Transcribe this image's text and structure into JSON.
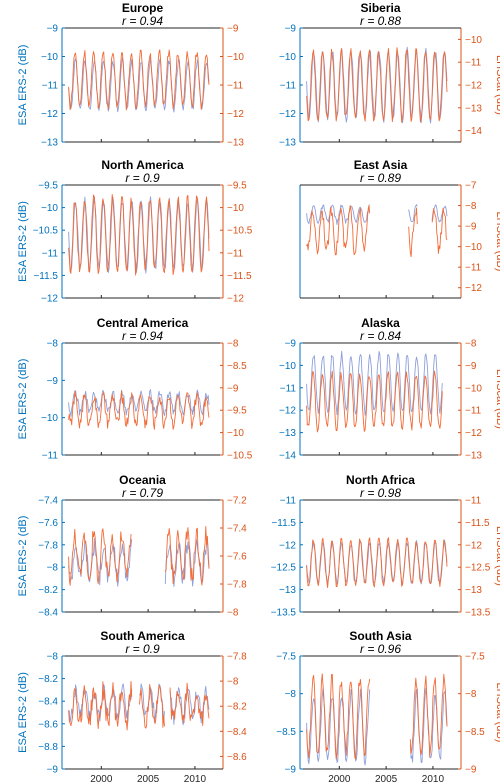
{
  "colors": {
    "ers": "#0072BD",
    "ers_line": "#8DA0DB",
    "lhs": "#D95319",
    "lhs_line": "#F26B38",
    "axis": "#262626"
  },
  "labels": {
    "left_axis": "ESA ERS-2 (dB)",
    "right_axis": "LHScat (dB)",
    "r_prefix": "r = "
  },
  "chart_data": [
    {
      "type": "line",
      "title": "Europe",
      "subtitle": "r = 0.94",
      "left_ylim": [
        -13,
        -9
      ],
      "left_ticks": [
        -13,
        -12,
        -11,
        -10,
        -9
      ],
      "right_ylim": [
        -13,
        -9
      ],
      "right_ticks": [
        -13,
        -12,
        -11,
        -10,
        -9
      ],
      "x_start": 1996.5,
      "x_end": 2011.5,
      "xlim": [
        1995.8,
        2013
      ],
      "xticks": [
        2000,
        2005,
        2010
      ],
      "series": [
        {
          "axis": "left",
          "amplitude": 0.85,
          "center": -11.0,
          "phase": 0.0,
          "noise": 0.12,
          "gaps": []
        },
        {
          "axis": "right",
          "amplitude": 0.95,
          "center": -10.8,
          "phase": 0.05,
          "noise": 0.15,
          "gaps": []
        }
      ]
    },
    {
      "type": "line",
      "title": "Siberia",
      "subtitle": "r = 0.88",
      "left_ylim": [
        -13,
        -9
      ],
      "left_ticks": [
        -13,
        -12,
        -11,
        -10,
        -9
      ],
      "right_ylim": [
        -14.5,
        -9.5
      ],
      "right_ticks": [
        -14,
        -13,
        -12,
        -11,
        -10
      ],
      "x_start": 1996.5,
      "x_end": 2011.5,
      "xlim": [
        1995.8,
        2013
      ],
      "xticks": [
        2000,
        2005,
        2010
      ],
      "series": [
        {
          "axis": "left",
          "amplitude": 1.2,
          "center": -11.0,
          "phase": 0.0,
          "noise": 0.15,
          "gaps": []
        },
        {
          "axis": "right",
          "amplitude": 1.5,
          "center": -12.0,
          "phase": 0.05,
          "noise": 0.18,
          "gaps": []
        }
      ]
    },
    {
      "type": "line",
      "title": "North America",
      "subtitle": "r = 0.9",
      "left_ylim": [
        -12,
        -9.5
      ],
      "left_ticks": [
        -12,
        -11.5,
        -11,
        -10.5,
        -10,
        -9.5
      ],
      "right_ylim": [
        -12,
        -9.5
      ],
      "right_ticks": [
        -12,
        -11.5,
        -11,
        -10.5,
        -10,
        -9.5
      ],
      "x_start": 1996.5,
      "x_end": 2011.5,
      "xlim": [
        1995.8,
        2013
      ],
      "xticks": [
        2000,
        2005,
        2010
      ],
      "series": [
        {
          "axis": "left",
          "amplitude": 0.75,
          "center": -10.6,
          "phase": 0.0,
          "noise": 0.1,
          "gaps": []
        },
        {
          "axis": "right",
          "amplitude": 0.8,
          "center": -10.6,
          "phase": 0.05,
          "noise": 0.12,
          "gaps": []
        }
      ]
    },
    {
      "type": "line",
      "title": "East Asia",
      "subtitle": "r = 0.89",
      "left_ylim": [
        -14.5,
        -7.5
      ],
      "left_ticks": [],
      "right_ylim": [
        -12.5,
        -7
      ],
      "right_ticks": [
        -12,
        -11,
        -10,
        -9,
        -8,
        -7
      ],
      "x_start": 1996.5,
      "x_end": 2011.5,
      "xlim": [
        1995.8,
        2013
      ],
      "xticks": [
        2000,
        2005,
        2010
      ],
      "series": [
        {
          "axis": "left",
          "amplitude": 0.5,
          "center": -9.3,
          "phase": 0.0,
          "noise": 0.15,
          "gaps": [
            [
              2003.3,
              2007.4
            ],
            [
              2008.4,
              2009.9
            ]
          ]
        },
        {
          "axis": "right",
          "amplitude": 1.0,
          "center": -9.2,
          "phase": 0.1,
          "noise": 0.3,
          "gaps": [
            [
              2003.3,
              2007.4
            ],
            [
              2008.4,
              2009.9
            ]
          ]
        }
      ]
    },
    {
      "type": "line",
      "title": "Central America",
      "subtitle": "r = 0.94",
      "left_ylim": [
        -11,
        -8
      ],
      "left_ticks": [
        -11,
        -10,
        -9,
        -8
      ],
      "right_ylim": [
        -10.5,
        -8
      ],
      "right_ticks": [
        -10.5,
        -10,
        -9.5,
        -9,
        -8.5,
        -8
      ],
      "x_start": 1996.5,
      "x_end": 2011.5,
      "xlim": [
        1995.8,
        2013
      ],
      "xticks": [
        2000,
        2005,
        2010
      ],
      "series": [
        {
          "axis": "left",
          "amplitude": 0.25,
          "center": -9.6,
          "phase": 0.0,
          "noise": 0.12,
          "gaps": []
        },
        {
          "axis": "right",
          "amplitude": 0.3,
          "center": -9.5,
          "phase": 0.05,
          "noise": 0.14,
          "gaps": []
        }
      ]
    },
    {
      "type": "line",
      "title": "Alaska",
      "subtitle": "r = 0.84",
      "left_ylim": [
        -14,
        -9
      ],
      "left_ticks": [
        -14,
        -13,
        -12,
        -11,
        -10,
        -9
      ],
      "right_ylim": [
        -13,
        -8
      ],
      "right_ticks": [
        -13,
        -12,
        -11,
        -10,
        -9,
        -8
      ],
      "x_start": 1996.5,
      "x_end": 2011.0,
      "xlim": [
        1995.8,
        2013
      ],
      "xticks": [
        2000,
        2005,
        2010
      ],
      "series": [
        {
          "axis": "left",
          "amplitude": 1.3,
          "center": -10.8,
          "phase": 0.0,
          "noise": 0.15,
          "gaps": []
        },
        {
          "axis": "right",
          "amplitude": 1.2,
          "center": -10.6,
          "phase": 0.05,
          "noise": 0.2,
          "gaps": []
        }
      ]
    },
    {
      "type": "line",
      "title": "Oceania",
      "subtitle": "r = 0.79",
      "left_ylim": [
        -8.4,
        -7.4
      ],
      "left_ticks": [
        -8.4,
        -8.2,
        -8,
        -7.8,
        -7.6,
        -7.4
      ],
      "right_ylim": [
        -8,
        -7.2
      ],
      "right_ticks": [
        -8,
        -7.8,
        -7.6,
        -7.4,
        -7.2
      ],
      "x_start": 1996.5,
      "x_end": 2011.5,
      "xlim": [
        1995.8,
        2013
      ],
      "xticks": [
        2000,
        2005,
        2010
      ],
      "series": [
        {
          "axis": "left",
          "amplitude": 0.15,
          "center": -7.95,
          "phase": 0.0,
          "noise": 0.08,
          "gaps": [
            [
              2003.3,
              2006.8
            ]
          ]
        },
        {
          "axis": "right",
          "amplitude": 0.15,
          "center": -7.6,
          "phase": 0.05,
          "noise": 0.07,
          "gaps": [
            [
              2003.3,
              2006.8
            ]
          ]
        }
      ]
    },
    {
      "type": "line",
      "title": "North Africa",
      "subtitle": "r = 0.98",
      "left_ylim": [
        -13.5,
        -11
      ],
      "left_ticks": [
        -13.5,
        -13,
        -12.5,
        -12,
        -11.5,
        -11
      ],
      "right_ylim": [
        -13.5,
        -11
      ],
      "right_ticks": [
        -13.5,
        -13,
        -12.5,
        -12,
        -11.5,
        -11
      ],
      "x_start": 1996.5,
      "x_end": 2011.5,
      "xlim": [
        1995.8,
        2013
      ],
      "xticks": [
        2000,
        2005,
        2010
      ],
      "series": [
        {
          "axis": "left",
          "amplitude": 0.45,
          "center": -12.4,
          "phase": 0.0,
          "noise": 0.07,
          "gaps": []
        },
        {
          "axis": "right",
          "amplitude": 0.5,
          "center": -12.4,
          "phase": 0.03,
          "noise": 0.08,
          "gaps": []
        }
      ]
    },
    {
      "type": "line",
      "title": "South America",
      "subtitle": "r = 0.9",
      "left_ylim": [
        -9,
        -8
      ],
      "left_ticks": [
        -9,
        -8.8,
        -8.6,
        -8.4,
        -8.2,
        -8
      ],
      "right_ylim": [
        -8.7,
        -7.8
      ],
      "right_ticks": [
        -8.6,
        -8.4,
        -8.2,
        -8,
        -7.8
      ],
      "x_start": 1996.5,
      "x_end": 2011.5,
      "xlim": [
        1995.8,
        2013
      ],
      "xticks": [
        2000,
        2005,
        2010
      ],
      "series": [
        {
          "axis": "left",
          "amplitude": 0.12,
          "center": -8.42,
          "phase": 0.0,
          "noise": 0.07,
          "gaps": [
            [
              2003.3,
              2004.0
            ],
            [
              2006.8,
              2007.3
            ]
          ]
        },
        {
          "axis": "right",
          "amplitude": 0.12,
          "center": -8.2,
          "phase": 0.05,
          "noise": 0.08,
          "gaps": [
            [
              2003.3,
              2004.0
            ],
            [
              2006.8,
              2007.3
            ]
          ]
        }
      ]
    },
    {
      "type": "line",
      "title": "South Asia",
      "subtitle": "r = 0.96",
      "left_ylim": [
        -9,
        -7.5
      ],
      "left_ticks": [
        -9,
        -8.5,
        -8,
        -7.5
      ],
      "right_ylim": [
        -9,
        -7.5
      ],
      "right_ticks": [
        -9,
        -8.5,
        -8,
        -7.5
      ],
      "x_start": 1996.5,
      "x_end": 2011.5,
      "xlim": [
        1995.8,
        2013
      ],
      "xticks": [
        2000,
        2005,
        2010
      ],
      "series": [
        {
          "axis": "left",
          "amplitude": 0.45,
          "center": -8.45,
          "phase": 0.0,
          "noise": 0.08,
          "gaps": [
            [
              2003.3,
              2007.5
            ]
          ]
        },
        {
          "axis": "right",
          "amplitude": 0.5,
          "center": -8.3,
          "phase": 0.05,
          "noise": 0.1,
          "gaps": [
            [
              2003.3,
              2007.5
            ]
          ]
        }
      ]
    }
  ]
}
